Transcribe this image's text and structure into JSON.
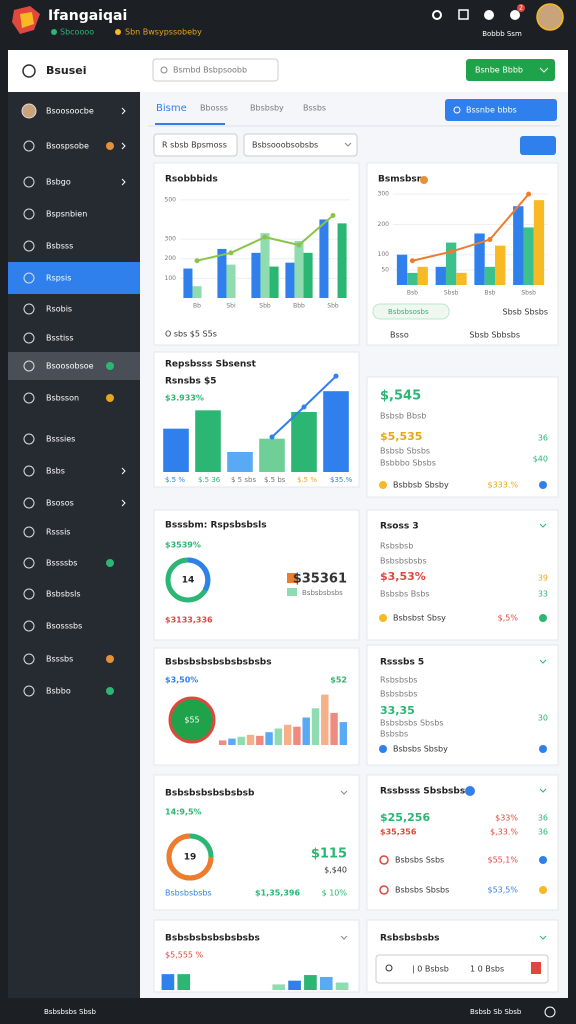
{
  "header": {
    "title": "Ifangaiqai",
    "status": "Sbcoooo",
    "subtitle": "Sbn Bwsypssobeby",
    "user": "Bobbb Ssm",
    "badge": "2"
  },
  "toolbar": {
    "title": "Bsusei",
    "search": "Bsmbd Bsbpsoobb",
    "button": "Bsnbe Bbbb"
  },
  "sidebar": [
    "Bsoosoocbe",
    "Bsospsobe",
    "Bsbgo",
    "Bspsnbien",
    "Bsbsss",
    "Rspsis",
    "Rsobis",
    "Bsstiss",
    "Bsoosobsoe",
    "Bsbsson",
    "Bsssies",
    "Bsbs",
    "Bsosos",
    "Rsssis",
    "Bssssbs",
    "Bsbsbsls",
    "Bsosssbs",
    "Bsssbs",
    "Bsbbo"
  ],
  "tabs": [
    "Bisme",
    "Bbosss",
    "Bbsbsby",
    "Bssbs"
  ],
  "filters": {
    "date": "R sbsb Bpsmoss",
    "select": "Bsbsooobsobsbs",
    "button": "Bssnbe bbbs"
  },
  "cards": [
    {
      "title": "Rsobbbids",
      "footer": "O sbs $5 S5s",
      "chart": {
        "ylim": [
          0,
          550
        ],
        "yticks": [
          100,
          200,
          300,
          500
        ],
        "categories": [
          "Bb",
          "Sbi",
          "Sbb",
          "Bbb",
          "Sbb"
        ],
        "series": [
          {
            "color": "#2f80ed",
            "values": [
              150,
              250,
              230,
              180,
              400
            ]
          },
          {
            "color": "#8fdcb0",
            "values": [
              60,
              170,
              330,
              290,
              0
            ]
          },
          {
            "color": "#2bb673",
            "values": [
              0,
              0,
              160,
              230,
              380
            ]
          }
        ],
        "line": {
          "color": "#8bc34a",
          "values": [
            190,
            230,
            310,
            270,
            420
          ]
        }
      }
    },
    {
      "title": "Bsmsbsr",
      "tag": "Bsbsbsosbs",
      "note": "Sbsb Sbsbs",
      "row": "Bsso",
      "row_value": "Sbsb Sbbsbs",
      "chart": {
        "ylim": [
          0,
          330
        ],
        "yticks": [
          50,
          100,
          200,
          300
        ],
        "categories": [
          "Bsb",
          "Sbsb",
          "Bsb",
          "Sbsb"
        ],
        "series": [
          {
            "color": "#2f80ed",
            "values": [
              100,
              60,
              170,
              260
            ]
          },
          {
            "color": "#3cc08c",
            "values": [
              40,
              140,
              60,
              190
            ]
          },
          {
            "color": "#f7b924",
            "values": [
              60,
              40,
              130,
              280
            ]
          }
        ],
        "line": {
          "color": "#f07b2c",
          "values": [
            80,
            110,
            150,
            300
          ]
        }
      }
    },
    {
      "title": "Repsbsss Sbsenst",
      "subtitle": "Rsnsbs $5",
      "value": "$3.933%",
      "labels": [
        "$.5 %",
        "$.5 36",
        "$ 5 sbs",
        "$.5 bs",
        "$.5 %",
        "$35.%"
      ],
      "chart": {
        "ylim": [
          0,
          120
        ],
        "colors": [
          "#2f80ed",
          "#2bb673",
          "#5aa9f5",
          "#6fcf97",
          "#2bb673",
          "#2f80ed"
        ],
        "series": [
          {
            "values": [
              52,
              74,
              24,
              40,
              72,
              97
            ]
          }
        ],
        "line": {
          "color": "#2f80ed",
          "values": [
            null,
            null,
            null,
            42,
            78,
            115
          ]
        }
      }
    },
    {
      "value": "$,545",
      "label": "Bsbsb Bbsb",
      "value2": "$5,535",
      "value2_side": "36",
      "lines": [
        "Bsbsb Sbsbs",
        "Bsbbbo Sbsbs"
      ],
      "side": "$40",
      "footer": "Bsbbsb Sbsby",
      "footer_value": "$333.%"
    },
    {
      "title": "Bsssbm: Rspsbsbsls",
      "value": "$3539%",
      "center": "14",
      "big": "$35361",
      "legend": "Bsbsbsbsbs",
      "footer": "$3133,336"
    },
    {
      "title": "Rsoss 3",
      "label": "Rsbsbsb",
      "sub": "Bsbsbsbsbs",
      "value": "$3,53%",
      "side": "39",
      "line": "Bsbsbs Bsbs",
      "side2": "33",
      "footer": "Bsbsbst Sbsy",
      "footer_value": "$,5%"
    },
    {
      "title": "Bsbsbsbsbsbsbsbsbs",
      "value": "$3,50%",
      "side": "$52",
      "center": "$55",
      "chart": {
        "ylim": [
          0,
          60
        ],
        "colors": [
          "#f08a80",
          "#5aa9f5",
          "#8fdcb0",
          "#f5b08a"
        ],
        "series": [
          {
            "values": [
              5,
              7,
              9,
              11,
              10,
              14,
              18,
              22,
              20,
              30,
              40,
              55,
              35,
              25
            ]
          }
        ]
      }
    },
    {
      "title": "Rsssbs 5",
      "label": "Rsbsbsbs",
      "sub": "Bsbsbsbs",
      "value": "33,35",
      "line": "Bsbsbsbs Sbsbs",
      "side": "30",
      "line2": "Bsbsbs",
      "footer": "Bsbsbs Sbsby"
    },
    {
      "title": "Bsbsbsbsbsbsbsb",
      "value": "14:9,5%",
      "center": "19",
      "big": "$115",
      "big2": "$,$40",
      "footer": "Bsbsbsbsbs",
      "footer_value": "$1,35,396",
      "footer_side": "$ 10%"
    },
    {
      "title": "Rssbsss Sbsbsbs",
      "v1": "$25,256",
      "v1b": "$33%",
      "v1c": "36",
      "v2": "$35,356",
      "v2b": "$,33.%",
      "v2c": "36",
      "row1": "Bsbsbs Ssbs",
      "row1_value": "$55,1%",
      "row2": "Bsbsbs Sbsbs",
      "row2_value": "$53,5%"
    },
    {
      "title": "Bsbsbsbsbsbsbsbs",
      "value": "$5,555 %",
      "chart": {
        "ylim": [
          0,
          30
        ],
        "colors": [
          "#2f80ed",
          "#2bb673",
          "#5aa9f5",
          "#8fdcb0"
        ],
        "series": [
          {
            "values": [
              17,
              17,
              0,
              0,
              0,
              0,
              0,
              6,
              10,
              16,
              14,
              8
            ]
          }
        ]
      }
    },
    {
      "title": "Rsbsbsbsbs",
      "input1": "| 0 Bsbsb",
      "input2": "1 0 Bsbs"
    }
  ],
  "footer": {
    "left": "Bsbsbsbs Sbsb",
    "right": "Bsbsb Sb Sbsb"
  }
}
